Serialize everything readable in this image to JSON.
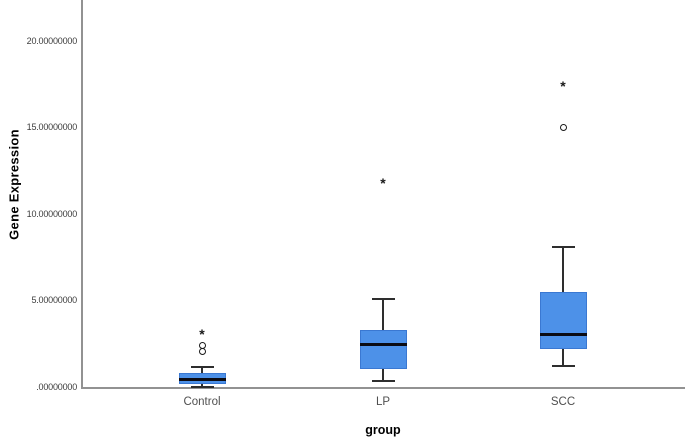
{
  "chart_data": {
    "type": "boxplot",
    "title": "",
    "ylabel": "Gene Expression",
    "xlabel": "group",
    "categories": [
      "Control",
      "LP",
      "SCC"
    ],
    "ylim": [
      0,
      22.5
    ],
    "grid": false,
    "legend": "none",
    "y_ticks": [
      {
        "value": 0,
        "label": ".00000000"
      },
      {
        "value": 5,
        "label": "5.00000000"
      },
      {
        "value": 10,
        "label": "10.00000000"
      },
      {
        "value": 15,
        "label": "15.00000000"
      },
      {
        "value": 20,
        "label": "20.00000000"
      }
    ],
    "series": [
      {
        "name": "Control",
        "whisker_low": 0.0,
        "q1": 0.12,
        "median": 0.38,
        "q3": 0.78,
        "whisker_high": 1.12,
        "outliers_mild": [
          2.05,
          2.4
        ],
        "outliers_extreme": [
          3.05
        ]
      },
      {
        "name": "LP",
        "whisker_low": 0.33,
        "q1": 1.0,
        "median": 2.45,
        "q3": 3.3,
        "whisker_high": 5.05,
        "outliers_mild": [],
        "outliers_extreme": [
          11.8
        ]
      },
      {
        "name": "SCC",
        "whisker_low": 1.2,
        "q1": 2.15,
        "median": 3.0,
        "q3": 5.5,
        "whisker_high": 8.1,
        "outliers_mild": [
          15.0
        ],
        "outliers_extreme": [
          17.4
        ]
      }
    ],
    "markers": {
      "mild": "circle",
      "extreme": "asterisk"
    },
    "colors": {
      "background": "#ffffff",
      "box_fill": "#4D91E8",
      "box_border": "#3A78D2",
      "median": "#0b0b12",
      "whisker": "#2e2e2e",
      "axis": "#929292",
      "tick_label": "#3d3d3d",
      "category_label": "#4f4f4f",
      "axis_title": "#000000",
      "outlier": "#1a1a1a"
    }
  }
}
